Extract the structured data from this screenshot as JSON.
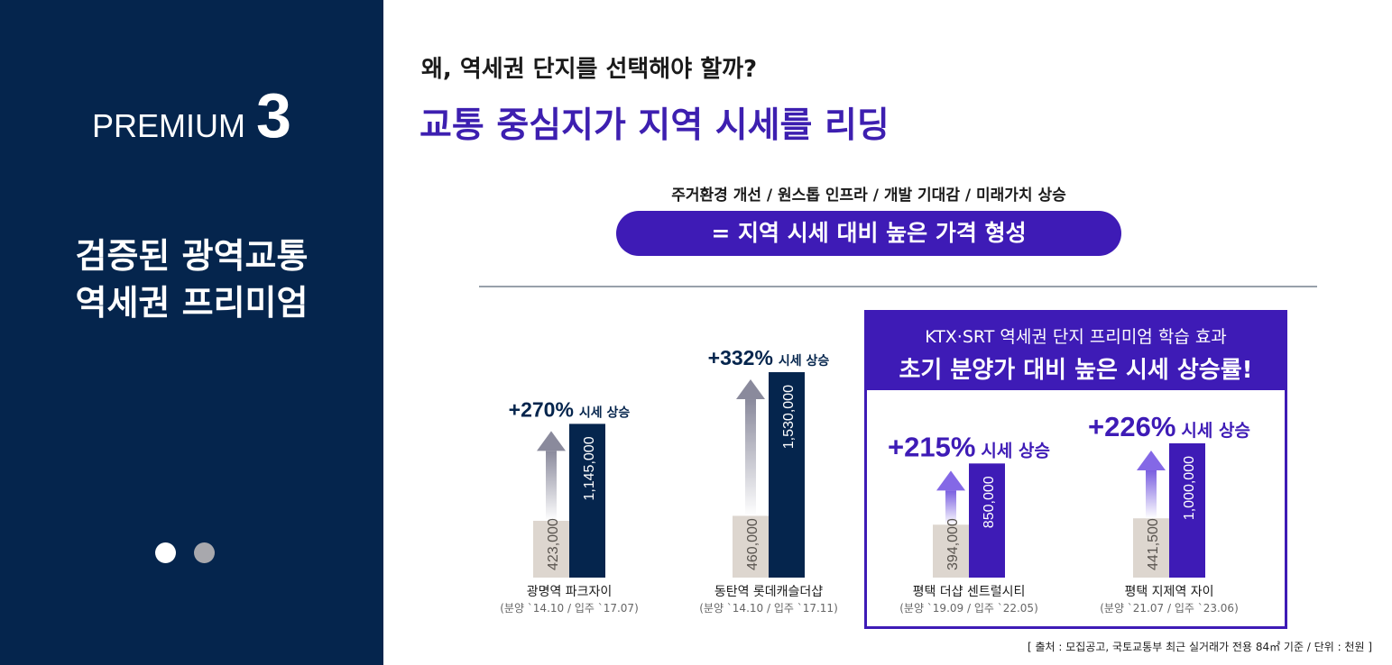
{
  "left": {
    "premium_word": "PREMIUM",
    "premium_num": "3",
    "title_line1": "검증된 광역교통",
    "title_line2": "역세권 프리미엄",
    "slides": [
      {
        "active": true
      },
      {
        "active": false
      }
    ]
  },
  "header": {
    "question": "왜, 역세권 단지를 선택해야 할까?",
    "headline": "교통 중심지가 지역 시세를 리딩"
  },
  "factors": "주거환경 개선  /  원스톱 인프라  /  개발 기대감  /  미래가치 상승",
  "formula": "= 지역 시세 대비 높은 가격 형성",
  "ktx_box": {
    "subtitle": "KTX·SRT 역세권 단지 프리미엄 학습 효과",
    "title": "초기 분양가 대비 높은 시세 상승률!"
  },
  "source": "[ 출처 : 모집공고, 국토교통부 최근 실거래가 전용 84㎡ 기준 / 단위 : 천원 ]",
  "colors": {
    "navy": "#05254d",
    "purple": "#3e1bb6",
    "beige": "#ddd6cf"
  },
  "chart_data": {
    "type": "bar",
    "unit": "천원",
    "suffix": "시세 상승",
    "series": [
      {
        "name": "분양가"
      },
      {
        "name": "시세"
      }
    ],
    "groups": [
      {
        "name": "광명역 파크자이",
        "period": "(분양 `14.10 / 입주 `17.07)",
        "presale": 423000,
        "presale_label": "423,000",
        "current": 1145000,
        "current_label": "1,145,000",
        "rise": "+270%",
        "highlight": false
      },
      {
        "name": "동탄역 롯데캐슬더샵",
        "period": "(분양 `14.10 / 입주 `17.11)",
        "presale": 460000,
        "presale_label": "460,000",
        "current": 1530000,
        "current_label": "1,530,000",
        "rise": "+332%",
        "highlight": false
      },
      {
        "name": "평택 더샵 센트럴시티",
        "period": "(분양 `19.09 / 입주 `22.05)",
        "presale": 394000,
        "presale_label": "394,000",
        "current": 850000,
        "current_label": "850,000",
        "rise": "+215%",
        "highlight": true
      },
      {
        "name": "평택 지제역 자이",
        "period": "(분양 `21.07 / 입주 `23.06)",
        "presale": 441500,
        "presale_label": "441,500",
        "current": 1000000,
        "current_label": "1,000,000",
        "rise": "+226%",
        "highlight": true
      }
    ]
  }
}
